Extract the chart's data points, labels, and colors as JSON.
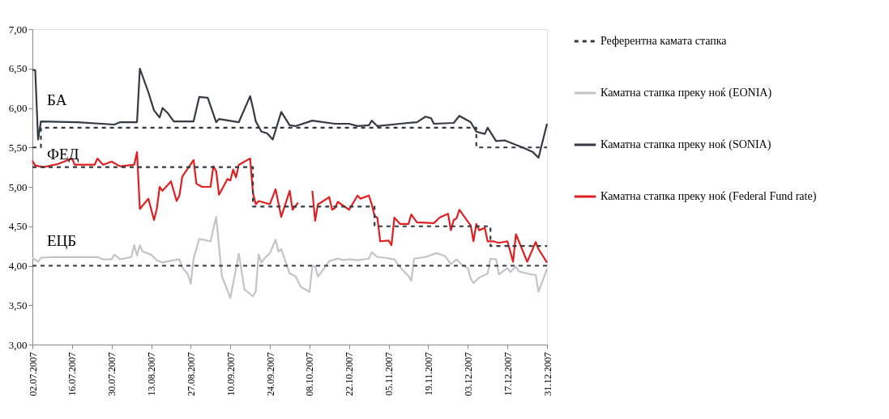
{
  "chart_data": {
    "type": "line",
    "xlim": [
      "2007-07-02",
      "2007-12-31"
    ],
    "xticks": [
      {
        "value": "2007-07-02",
        "label": "02.07.2007"
      },
      {
        "value": "2007-07-16",
        "label": "16.07.2007"
      },
      {
        "value": "2007-07-30",
        "label": "30.07.2007"
      },
      {
        "value": "2007-08-13",
        "label": "13.08.2007"
      },
      {
        "value": "2007-08-27",
        "label": "27.08.2007"
      },
      {
        "value": "2007-09-10",
        "label": "10.09.2007"
      },
      {
        "value": "2007-09-24",
        "label": "24.09.2007"
      },
      {
        "value": "2007-10-08",
        "label": "08.10.2007"
      },
      {
        "value": "2007-10-22",
        "label": "22.10.2007"
      },
      {
        "value": "2007-11-05",
        "label": "05.11.2007"
      },
      {
        "value": "2007-11-19",
        "label": "19.11.2007"
      },
      {
        "value": "2007-12-03",
        "label": "03.12.2007"
      },
      {
        "value": "2007-12-17",
        "label": "17.12.2007"
      },
      {
        "value": "2007-12-31",
        "label": "31.12.2007"
      }
    ],
    "ylim": [
      3.0,
      7.0
    ],
    "yticks": [
      {
        "value": 3.0,
        "label": "3,00"
      },
      {
        "value": 3.5,
        "label": "3,50"
      },
      {
        "value": 4.0,
        "label": "4,00"
      },
      {
        "value": 4.5,
        "label": "4,50"
      },
      {
        "value": 5.0,
        "label": "5,00"
      },
      {
        "value": 5.5,
        "label": "5,50"
      },
      {
        "value": 6.0,
        "label": "6,00"
      },
      {
        "value": 6.5,
        "label": "6,50"
      },
      {
        "value": 7.0,
        "label": "7,00"
      }
    ],
    "grid": false,
    "legend": "right",
    "annotations": [
      "БА",
      "ФЕД",
      "ЕЦБ"
    ],
    "series": [
      {
        "name": "Референтна камата стапка",
        "type": "step",
        "line_style": "dashed",
        "color": "#333a40",
        "x": [
          "2007-07-02",
          "2007-07-05",
          "2007-12-06",
          "2007-12-31"
        ],
        "values": [
          5.5,
          5.75,
          5.5,
          5.5
        ]
      },
      {
        "name": "Каматна стапка преку ноќ (EONIA)",
        "type": "line",
        "line_style": "solid",
        "color": "#c4c4c8",
        "x": [
          "2007-07-02",
          "2007-07-04",
          "2007-07-05",
          "2007-07-09",
          "2007-07-25",
          "2007-07-27",
          "2007-07-30",
          "2007-07-31",
          "2007-08-02",
          "2007-08-06",
          "2007-08-07",
          "2007-08-08",
          "2007-08-09",
          "2007-08-10",
          "2007-08-13",
          "2007-08-15",
          "2007-08-17",
          "2007-08-21",
          "2007-08-23",
          "2007-08-24",
          "2007-08-26",
          "2007-08-27",
          "2007-08-28",
          "2007-08-30",
          "2007-09-03",
          "2007-09-05",
          "2007-09-07",
          "2007-09-10",
          "2007-09-13",
          "2007-09-15",
          "2007-09-18",
          "2007-09-19",
          "2007-09-20",
          "2007-09-21",
          "2007-09-22",
          "2007-09-24",
          "2007-09-26",
          "2007-09-27",
          "2007-09-28",
          "2007-10-01",
          "2007-10-03",
          "2007-10-05",
          "2007-10-08",
          "2007-10-09",
          "2007-10-10",
          "2007-10-11",
          "2007-10-15",
          "2007-10-18",
          "2007-10-20",
          "2007-10-22",
          "2007-10-25",
          "2007-10-29",
          "2007-10-30",
          "2007-11-01",
          "2007-11-04",
          "2007-11-07",
          "2007-11-09",
          "2007-11-12",
          "2007-11-13",
          "2007-11-14",
          "2007-11-18",
          "2007-11-22",
          "2007-11-25",
          "2007-11-27",
          "2007-11-29",
          "2007-12-01",
          "2007-12-03",
          "2007-12-04",
          "2007-12-05",
          "2007-12-07",
          "2007-12-10",
          "2007-12-11",
          "2007-12-13",
          "2007-12-14",
          "2007-12-17",
          "2007-12-18",
          "2007-12-20",
          "2007-12-21",
          "2007-12-24",
          "2007-12-27",
          "2007-12-28",
          "2007-12-31"
        ],
        "values": [
          4.1,
          4.05,
          4.1,
          4.11,
          4.11,
          4.08,
          4.08,
          4.14,
          4.08,
          4.11,
          4.26,
          4.13,
          4.26,
          4.18,
          4.14,
          4.07,
          4.04,
          4.07,
          4.08,
          3.98,
          3.89,
          3.77,
          4.09,
          4.34,
          4.31,
          4.62,
          3.87,
          3.59,
          4.15,
          3.7,
          3.61,
          3.68,
          4.14,
          4.04,
          4.09,
          4.16,
          4.33,
          4.18,
          4.21,
          3.9,
          3.87,
          3.73,
          3.67,
          4.0,
          3.99,
          3.86,
          4.06,
          4.09,
          4.07,
          4.08,
          4.07,
          4.09,
          4.17,
          4.11,
          4.1,
          4.08,
          3.98,
          3.87,
          3.81,
          4.09,
          4.11,
          4.16,
          4.12,
          4.02,
          4.08,
          4.01,
          3.97,
          3.84,
          3.78,
          3.85,
          3.9,
          4.09,
          4.08,
          3.89,
          3.97,
          3.92,
          3.99,
          3.93,
          3.9,
          3.88,
          3.67,
          3.96
        ]
      },
      {
        "name": "Каматна стапка преку ноќ (SONIA)",
        "type": "line",
        "line_style": "solid",
        "color": "#353b40",
        "x": [
          "2007-07-02",
          "2007-07-03",
          "2007-07-04",
          "2007-07-05",
          "2007-07-18",
          "2007-07-31",
          "2007-08-02",
          "2007-08-08",
          "2007-08-09",
          "2007-08-12",
          "2007-08-14",
          "2007-08-16",
          "2007-08-17",
          "2007-08-19",
          "2007-08-21",
          "2007-08-28",
          "2007-08-30",
          "2007-09-02",
          "2007-09-05",
          "2007-09-06",
          "2007-09-13",
          "2007-09-17",
          "2007-09-18",
          "2007-09-19",
          "2007-09-21",
          "2007-09-23",
          "2007-09-25",
          "2007-09-28",
          "2007-10-01",
          "2007-10-03",
          "2007-10-09",
          "2007-10-11",
          "2007-10-17",
          "2007-10-22",
          "2007-10-25",
          "2007-10-29",
          "2007-10-30",
          "2007-11-01",
          "2007-11-09",
          "2007-11-15",
          "2007-11-18",
          "2007-11-20",
          "2007-11-21",
          "2007-11-28",
          "2007-11-30",
          "2007-12-04",
          "2007-12-06",
          "2007-12-09",
          "2007-12-10",
          "2007-12-13",
          "2007-12-16",
          "2007-12-23",
          "2007-12-26",
          "2007-12-28",
          "2007-12-31"
        ],
        "values": [
          6.48,
          6.48,
          5.6,
          5.83,
          5.82,
          5.79,
          5.82,
          5.82,
          6.5,
          6.2,
          5.97,
          5.88,
          6.0,
          5.93,
          5.83,
          5.83,
          6.14,
          6.13,
          5.82,
          5.86,
          5.82,
          6.15,
          6.0,
          5.83,
          5.7,
          5.68,
          5.6,
          5.95,
          5.78,
          5.77,
          5.84,
          5.83,
          5.8,
          5.8,
          5.77,
          5.78,
          5.84,
          5.77,
          5.8,
          5.82,
          5.89,
          5.87,
          5.8,
          5.81,
          5.9,
          5.82,
          5.7,
          5.67,
          5.75,
          5.58,
          5.59,
          5.49,
          5.44,
          5.37,
          5.8
        ]
      },
      {
        "name": "Каматна стапка преку ноќ (Federal Fund rate)",
        "type": "line",
        "line_style": "solid",
        "color": "#e02020",
        "x": [
          "2007-07-02",
          "2007-07-03",
          "2007-07-06",
          "2007-07-11",
          "2007-07-16",
          "2007-07-17",
          "2007-07-24",
          "2007-07-25",
          "2007-07-27",
          "2007-07-30",
          "2007-08-02",
          "2007-08-07",
          "2007-08-08",
          "2007-08-09",
          "2007-08-12",
          "2007-08-14",
          "2007-08-15",
          "2007-08-16",
          "2007-08-17",
          "2007-08-20",
          "2007-08-22",
          "2007-08-23",
          "2007-08-24",
          "2007-08-28",
          "2007-08-29",
          "2007-08-31",
          "2007-09-03",
          "2007-09-04",
          "2007-09-05",
          "2007-09-06",
          "2007-09-09",
          "2007-09-10",
          "2007-09-11",
          "2007-09-12",
          "2007-09-13",
          "2007-09-17",
          "2007-09-18",
          "2007-09-19",
          "2007-09-20",
          "2007-09-24",
          "2007-09-26",
          "2007-09-28",
          "2007-10-01",
          "2007-10-02",
          "2007-10-04",
          "2007-10-07",
          "2007-10-09",
          "2007-10-10",
          "2007-10-11",
          "2007-10-12",
          "2007-10-15",
          "2007-10-16",
          "2007-10-17",
          "2007-10-18",
          "2007-10-22",
          "2007-10-25",
          "2007-10-26",
          "2007-10-29",
          "2007-10-30",
          "2007-10-31",
          "2007-11-01",
          "2007-11-02",
          "2007-11-05",
          "2007-11-06",
          "2007-11-07",
          "2007-11-09",
          "2007-11-12",
          "2007-11-13",
          "2007-11-15",
          "2007-11-21",
          "2007-11-23",
          "2007-11-26",
          "2007-11-27",
          "2007-11-28",
          "2007-11-29",
          "2007-11-30",
          "2007-12-03",
          "2007-12-04",
          "2007-12-05",
          "2007-12-06",
          "2007-12-07",
          "2007-12-09",
          "2007-12-10",
          "2007-12-12",
          "2007-12-14",
          "2007-12-17",
          "2007-12-19",
          "2007-12-20",
          "2007-12-24",
          "2007-12-27",
          "2007-12-28",
          "2007-12-31"
        ],
        "values": [
          5.33,
          5.27,
          5.25,
          5.29,
          5.36,
          5.28,
          5.28,
          5.36,
          5.28,
          5.32,
          5.26,
          5.28,
          5.44,
          4.72,
          4.85,
          4.58,
          4.72,
          5.0,
          4.95,
          5.07,
          4.82,
          4.89,
          5.13,
          5.34,
          5.04,
          5.0,
          5.0,
          5.26,
          5.2,
          4.9,
          5.1,
          5.08,
          5.22,
          5.12,
          5.28,
          5.36,
          4.92,
          4.78,
          4.82,
          4.78,
          4.97,
          4.62,
          4.95,
          4.71,
          4.8,
          null,
          4.95,
          4.57,
          4.78,
          4.8,
          4.87,
          4.71,
          4.73,
          4.81,
          4.71,
          4.89,
          4.85,
          4.89,
          4.78,
          4.63,
          4.61,
          4.31,
          4.32,
          4.26,
          4.61,
          4.53,
          4.53,
          4.65,
          4.55,
          4.54,
          4.61,
          4.66,
          4.45,
          4.58,
          4.6,
          4.71,
          4.56,
          4.51,
          4.31,
          4.53,
          4.45,
          4.48,
          4.31,
          4.31,
          4.29,
          4.31,
          4.05,
          4.4,
          4.05,
          4.3,
          4.21,
          4.04
        ]
      },
      {
        "type": "step",
        "line_style": "dashed",
        "color": "#333a40",
        "x": [
          "2007-07-02",
          "2007-09-18",
          "2007-10-31",
          "2007-12-11",
          "2007-12-31"
        ],
        "values": [
          5.25,
          4.75,
          4.5,
          4.25,
          4.25
        ]
      },
      {
        "type": "step",
        "line_style": "dashed",
        "color": "#333a40",
        "x": [
          "2007-07-02",
          "2007-12-31"
        ],
        "values": [
          4.0,
          4.0
        ]
      }
    ]
  }
}
